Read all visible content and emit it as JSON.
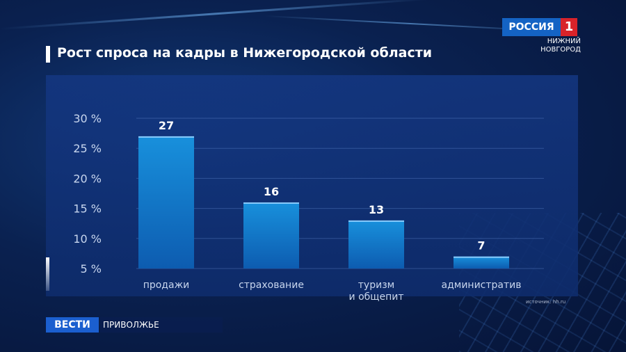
{
  "title": "Рост спроса на кадры в Нижегородской области",
  "logo": {
    "brand": "РОССИЯ",
    "number": "1",
    "city_line1": "НИЖНИЙ",
    "city_line2": "НОВГОРОД"
  },
  "source": "источник: hh.ru",
  "bottom_bar": {
    "brand": "ВЕСТИ",
    "region": "ПРИВОЛЖЬЕ"
  },
  "colors": {
    "bar_top": "#1890dc",
    "bar_bottom": "#0d5cb0",
    "text": "#ffffff",
    "axis_text": "#c8d6ee"
  },
  "chart_data": {
    "type": "bar",
    "title": "Рост спроса на кадры в Нижегородской области",
    "categories": [
      [
        "продажи"
      ],
      [
        "страхование"
      ],
      [
        "туризм",
        "и общепит"
      ],
      [
        "административ"
      ]
    ],
    "values": [
      27,
      16,
      13,
      7
    ],
    "data_labels": [
      "27",
      "16",
      "13",
      "7"
    ],
    "yticks": [
      5,
      10,
      15,
      20,
      25,
      30
    ],
    "ytick_labels": [
      "5 %",
      "10 %",
      "15 %",
      "20 %",
      "25 %",
      "30 %"
    ],
    "ylim": [
      5,
      30
    ],
    "grid": true
  }
}
